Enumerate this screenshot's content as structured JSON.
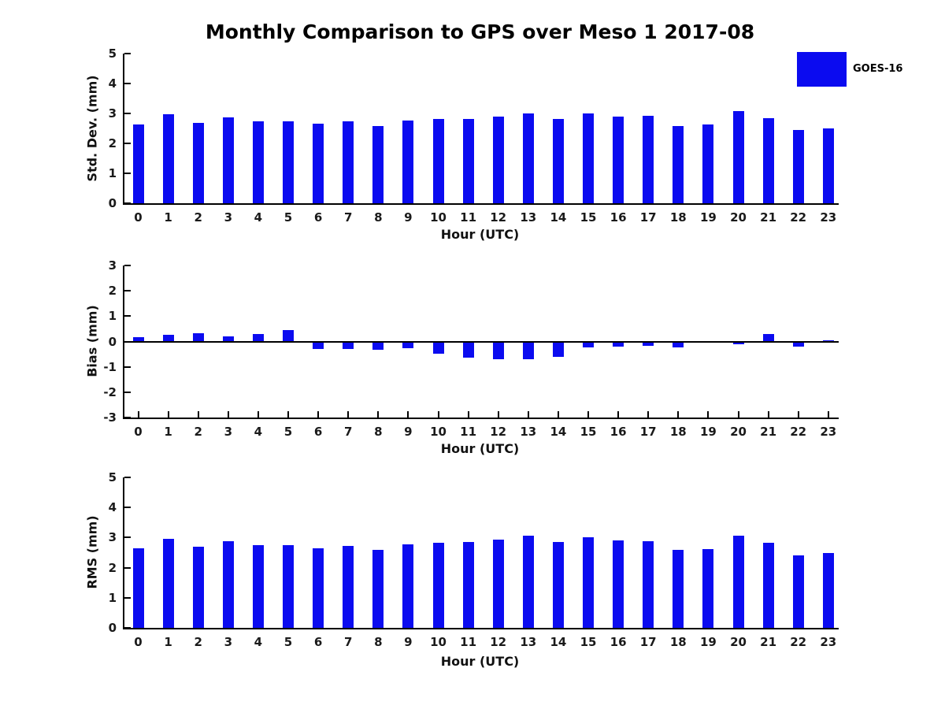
{
  "title": "Monthly Comparison to GPS over Meso 1 2017-08",
  "legend": {
    "label": "GOES-16",
    "swatch_color": "#0b0bf0"
  },
  "colors": {
    "bar": "#0b0bf0",
    "axis": "#000000"
  },
  "chart_data": [
    {
      "type": "bar",
      "series_name": "GOES-16",
      "ylabel": "Std. Dev. (mm)",
      "xlabel": "Hour (UTC)",
      "categories": [
        0,
        1,
        2,
        3,
        4,
        5,
        6,
        7,
        8,
        9,
        10,
        11,
        12,
        13,
        14,
        15,
        16,
        17,
        18,
        19,
        20,
        21,
        22,
        23
      ],
      "values": [
        2.64,
        2.97,
        2.68,
        2.86,
        2.74,
        2.74,
        2.66,
        2.73,
        2.59,
        2.76,
        2.82,
        2.81,
        2.9,
        2.99,
        2.82,
        2.99,
        2.89,
        2.91,
        2.59,
        2.62,
        3.07,
        2.83,
        2.44,
        2.51
      ],
      "ylim": [
        0,
        5
      ],
      "yticks": [
        0,
        1,
        2,
        3,
        4,
        5
      ],
      "grid": false,
      "legend_position": "upper-right-of-figure"
    },
    {
      "type": "bar",
      "series_name": "GOES-16",
      "ylabel": "Bias (mm)",
      "xlabel": "Hour (UTC)",
      "categories": [
        0,
        1,
        2,
        3,
        4,
        5,
        6,
        7,
        8,
        9,
        10,
        11,
        12,
        13,
        14,
        15,
        16,
        17,
        18,
        19,
        20,
        21,
        22,
        23
      ],
      "values": [
        0.18,
        0.25,
        0.33,
        0.19,
        0.3,
        0.44,
        -0.3,
        -0.29,
        -0.33,
        -0.26,
        -0.48,
        -0.63,
        -0.71,
        -0.69,
        -0.6,
        -0.24,
        -0.19,
        -0.17,
        -0.24,
        -0.02,
        -0.1,
        0.31,
        -0.2,
        0.04
      ],
      "ylim": [
        -3,
        3
      ],
      "yticks": [
        -3,
        -2,
        -1,
        0,
        1,
        2,
        3
      ],
      "grid": false
    },
    {
      "type": "bar",
      "series_name": "GOES-16",
      "ylabel": "RMS (mm)",
      "xlabel": "Hour (UTC)",
      "categories": [
        0,
        1,
        2,
        3,
        4,
        5,
        6,
        7,
        8,
        9,
        10,
        11,
        12,
        13,
        14,
        15,
        16,
        17,
        18,
        19,
        20,
        21,
        22,
        23
      ],
      "values": [
        2.64,
        2.96,
        2.69,
        2.87,
        2.74,
        2.74,
        2.65,
        2.72,
        2.59,
        2.77,
        2.83,
        2.85,
        2.93,
        3.06,
        2.85,
        3.0,
        2.91,
        2.89,
        2.6,
        2.63,
        3.06,
        2.83,
        2.41,
        2.5
      ],
      "ylim": [
        0,
        5
      ],
      "yticks": [
        0,
        1,
        2,
        3,
        4,
        5
      ],
      "grid": false
    }
  ]
}
